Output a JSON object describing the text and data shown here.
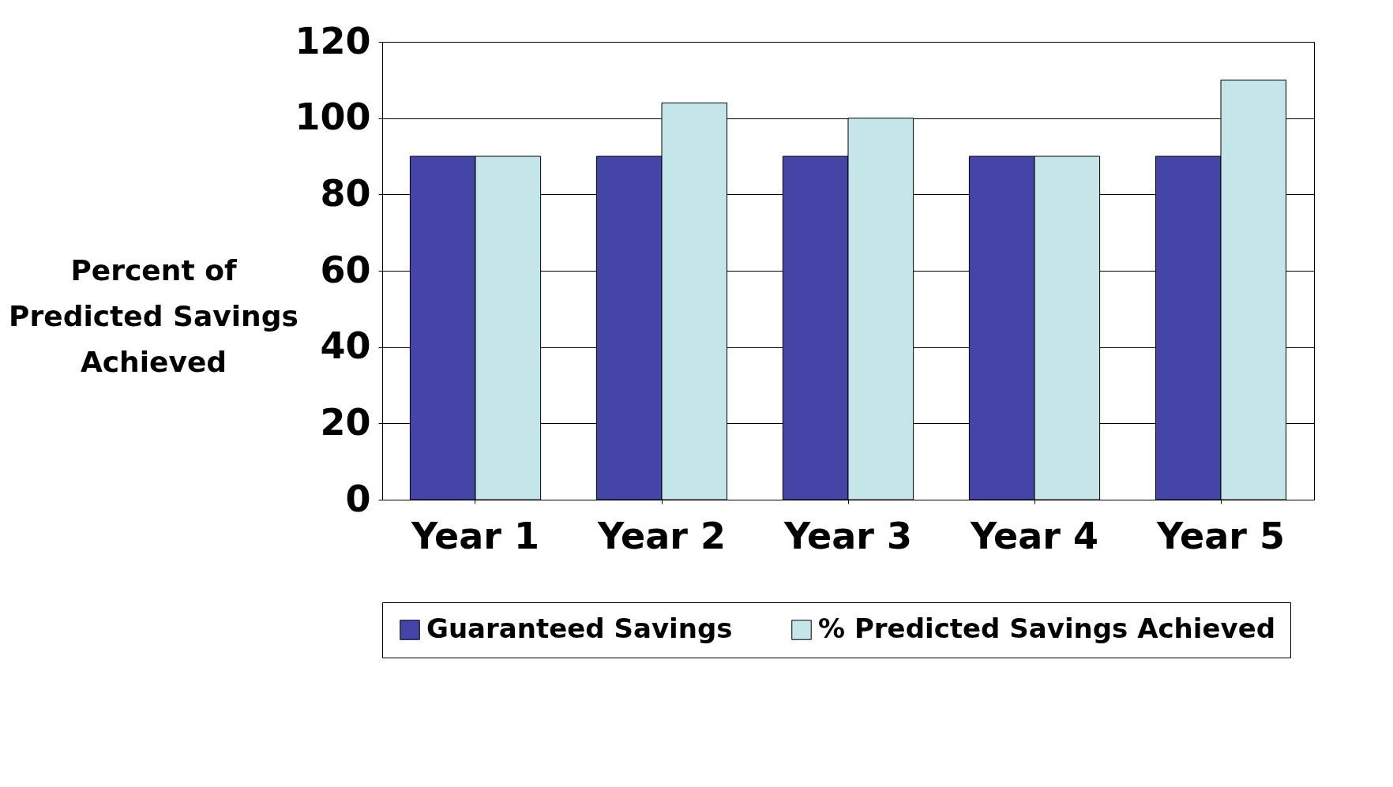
{
  "chart_data": {
    "type": "bar",
    "ylabel": "Percent of Predicted Savings Achieved",
    "categories": [
      "Year 1",
      "Year 2",
      "Year 3",
      "Year 4",
      "Year 5"
    ],
    "series": [
      {
        "name": "Guaranteed Savings",
        "color": "#4545a8",
        "values": [
          90,
          90,
          90,
          90,
          90
        ]
      },
      {
        "name": "% Predicted Savings Achieved",
        "color": "#c5e6e8",
        "values": [
          90,
          104,
          100,
          90,
          110
        ]
      }
    ],
    "ylim": [
      0,
      120
    ],
    "yticks": [
      0,
      20,
      40,
      60,
      80,
      100,
      120
    ],
    "grid": "y",
    "legend": "bottom"
  }
}
